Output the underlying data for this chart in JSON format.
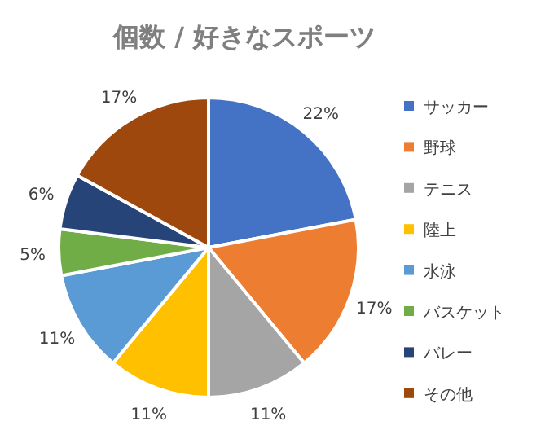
{
  "chart_data": {
    "type": "pie",
    "title": "個数 / 好きなスポーツ",
    "categories": [
      "サッカー",
      "野球",
      "テニス",
      "陸上",
      "水泳",
      "バスケット",
      "バレー",
      "その他"
    ],
    "values": [
      22,
      17,
      11,
      11,
      11,
      5,
      6,
      17
    ],
    "colors": [
      "#4472c4",
      "#ed7d31",
      "#a5a5a5",
      "#ffc000",
      "#5b9bd5",
      "#70ad47",
      "#264478",
      "#9e480e"
    ],
    "value_labels": [
      "22%",
      "17%",
      "11%",
      "11%",
      "11%",
      "5%",
      "6%",
      "17%"
    ],
    "legend": "right"
  }
}
